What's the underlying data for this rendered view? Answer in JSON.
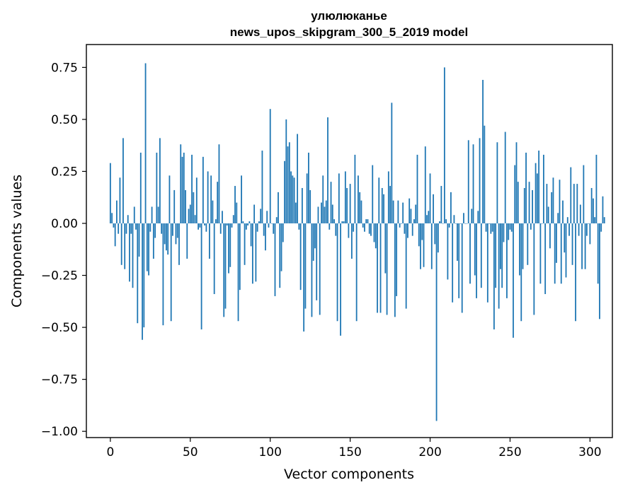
{
  "chart_data": {
    "type": "bar",
    "title": "улюлюканье",
    "subtitle": "news_upos_skipgram_300_5_2019 model",
    "xlabel": "Vector components",
    "ylabel": "Components values",
    "xlim": [
      -15,
      314
    ],
    "ylim": [
      -1.03,
      0.86
    ],
    "xticks": [
      0,
      50,
      100,
      150,
      200,
      250,
      300
    ],
    "xtick_labels": [
      "0",
      "50",
      "100",
      "150",
      "200",
      "250",
      "300"
    ],
    "yticks": [
      0.75,
      0.5,
      0.25,
      0.0,
      -0.25,
      -0.5,
      -0.75,
      -1.0
    ],
    "ytick_labels": [
      "0.75",
      "0.50",
      "0.25",
      "0.00",
      "−0.25",
      "−0.50",
      "−0.75",
      "−1.00"
    ],
    "bar_color": "#1f77b4",
    "x_start": 0,
    "values": [
      0.29,
      0.05,
      -0.02,
      -0.11,
      0.11,
      -0.05,
      0.22,
      -0.2,
      0.41,
      -0.22,
      -0.05,
      0.04,
      -0.28,
      -0.05,
      -0.31,
      0.08,
      -0.03,
      -0.48,
      -0.16,
      0.34,
      -0.56,
      -0.5,
      0.77,
      -0.23,
      -0.25,
      -0.04,
      0.08,
      -0.17,
      -0.07,
      0.34,
      0.08,
      0.41,
      -0.05,
      -0.49,
      -0.1,
      -0.13,
      -0.15,
      0.23,
      -0.47,
      -0.06,
      0.16,
      -0.1,
      -0.07,
      -0.2,
      0.38,
      0.32,
      0.34,
      0.16,
      -0.17,
      0.07,
      0.09,
      0.33,
      0.15,
      0.04,
      0.22,
      -0.03,
      -0.02,
      -0.51,
      0.32,
      -0.01,
      -0.04,
      0.25,
      -0.17,
      0.23,
      0.11,
      -0.34,
      0.02,
      0.2,
      0.38,
      -0.05,
      0.06,
      -0.45,
      -0.41,
      -0.01,
      -0.24,
      -0.21,
      -0.02,
      0.04,
      0.18,
      0.1,
      -0.47,
      -0.32,
      0.23,
      0.01,
      -0.2,
      -0.03,
      -0.01,
      0.01,
      -0.11,
      -0.29,
      0.09,
      -0.28,
      -0.04,
      0.01,
      0.07,
      0.35,
      -0.06,
      -0.13,
      0.06,
      -0.02,
      0.55,
      0.0,
      -0.05,
      -0.35,
      0.03,
      0.15,
      -0.31,
      -0.23,
      -0.09,
      0.3,
      0.5,
      0.37,
      0.39,
      0.25,
      0.23,
      0.22,
      0.1,
      0.43,
      -0.03,
      -0.32,
      0.17,
      -0.52,
      -0.41,
      0.24,
      0.34,
      0.16,
      -0.45,
      -0.18,
      -0.12,
      -0.37,
      0.08,
      -0.44,
      0.1,
      0.23,
      0.08,
      0.11,
      0.51,
      -0.03,
      0.2,
      0.09,
      0.02,
      -0.06,
      -0.47,
      0.24,
      -0.54,
      0.01,
      0.01,
      0.25,
      0.17,
      -0.07,
      0.19,
      -0.17,
      -0.04,
      0.33,
      -0.47,
      0.23,
      0.15,
      0.11,
      -0.02,
      -0.04,
      0.02,
      0.02,
      -0.05,
      -0.06,
      0.28,
      -0.09,
      -0.12,
      -0.43,
      0.22,
      -0.43,
      0.17,
      0.14,
      -0.24,
      -0.44,
      0.25,
      0.18,
      0.58,
      0.11,
      -0.45,
      -0.35,
      0.11,
      -0.02,
      0.0,
      0.1,
      -0.05,
      -0.41,
      -0.07,
      0.12,
      0.07,
      -0.06,
      0.02,
      0.09,
      0.33,
      -0.11,
      -0.22,
      -0.08,
      -0.21,
      0.37,
      0.04,
      0.06,
      0.24,
      -0.22,
      0.14,
      -0.1,
      -0.95,
      -0.14,
      0.01,
      0.18,
      0.0,
      0.75,
      0.02,
      -0.27,
      -0.02,
      0.15,
      -0.38,
      0.04,
      0.0,
      -0.18,
      -0.36,
      0.0,
      -0.43,
      0.05,
      0.0,
      0.0,
      0.4,
      -0.29,
      0.07,
      0.38,
      -0.25,
      -0.36,
      0.06,
      0.41,
      -0.31,
      0.69,
      0.47,
      -0.04,
      -0.38,
      0.0,
      -0.05,
      -0.04,
      -0.51,
      -0.31,
      0.39,
      -0.41,
      -0.22,
      -0.31,
      -0.09,
      0.44,
      -0.36,
      -0.08,
      -0.03,
      -0.04,
      -0.55,
      0.28,
      0.39,
      0.2,
      -0.25,
      -0.47,
      -0.22,
      0.17,
      0.34,
      -0.2,
      0.2,
      -0.03,
      0.16,
      -0.44,
      0.29,
      0.24,
      0.35,
      -0.29,
      0.0,
      0.33,
      -0.34,
      0.19,
      0.08,
      -0.12,
      0.15,
      0.22,
      -0.29,
      -0.19,
      0.05,
      0.21,
      -0.29,
      0.11,
      -0.14,
      -0.26,
      0.03,
      -0.06,
      0.27,
      -0.2,
      0.19,
      -0.47,
      0.19,
      -0.06,
      0.09,
      -0.22,
      0.28,
      -0.22,
      -0.06,
      0.0,
      -0.1,
      0.17,
      0.12,
      0.03,
      0.33,
      -0.29,
      -0.46,
      -0.04,
      0.13,
      0.03
    ]
  }
}
